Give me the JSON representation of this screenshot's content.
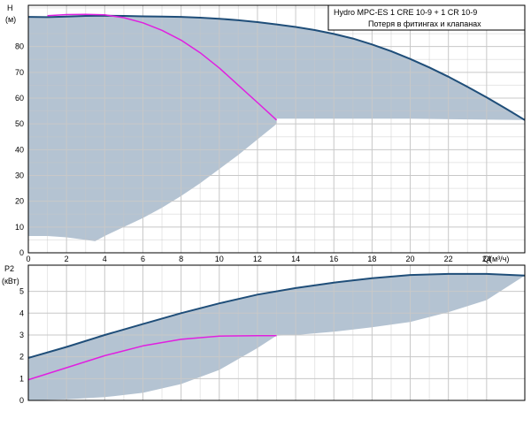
{
  "chart_data": [
    {
      "type": "line",
      "ylabel_line1": "H",
      "ylabel_line2": "(м)",
      "xlabel": "Q(м³/ч)",
      "xlim": [
        0,
        26
      ],
      "ylim": [
        0,
        96
      ],
      "x_tick_labels": [
        "0",
        "2",
        "4",
        "6",
        "8",
        "10",
        "12",
        "14",
        "16",
        "18",
        "20",
        "22",
        "24"
      ],
      "x_tick_values": [
        0,
        2,
        4,
        6,
        8,
        10,
        12,
        14,
        16,
        18,
        20,
        22,
        24
      ],
      "y_tick_values": [
        0,
        10,
        20,
        30,
        40,
        50,
        60,
        70,
        80
      ],
      "legend": {
        "line1": "Hydro MPC-ES 1 CRE 10-9  +  1 CR 10-9",
        "line2": "Потеря в фитингах и клапанах"
      },
      "colors": {
        "system_curve": "#1f4e79",
        "single_pump_curve": "#e020e0",
        "operating_area": "#b4c3d2",
        "grid": "#c8c8c8"
      },
      "series": [
        {
          "x": [
            0,
            1,
            2,
            3,
            4,
            5,
            6,
            7,
            8,
            9,
            10,
            11,
            12,
            13,
            14,
            15,
            16,
            17,
            18,
            19,
            20,
            21,
            22,
            23,
            24,
            25,
            26
          ],
          "values": [
            91.5,
            91.4,
            91.6,
            91.9,
            92.0,
            91.9,
            91.7,
            91.6,
            91.5,
            91.2,
            90.8,
            90.2,
            89.5,
            88.6,
            87.6,
            86.4,
            84.9,
            83.1,
            80.8,
            78.2,
            75.2,
            71.9,
            68.3,
            64.4,
            60.3,
            56.0,
            51.5
          ]
        },
        {
          "x": [
            1,
            2,
            3,
            4,
            5,
            6,
            7,
            8,
            9,
            10,
            11,
            12,
            13
          ],
          "values": [
            92.0,
            92.4,
            92.5,
            92.3,
            91.2,
            89.2,
            86.3,
            82.5,
            77.6,
            71.7,
            65.0,
            58.3,
            51.5
          ]
        }
      ],
      "area_upper": {
        "x": [
          0,
          1,
          2,
          3,
          4,
          5,
          6,
          7,
          8,
          9,
          10,
          11,
          12,
          13,
          14,
          15,
          16,
          17,
          18,
          19,
          20,
          21,
          22,
          23,
          24,
          25,
          26
        ],
        "values": [
          91.5,
          91.4,
          91.6,
          91.9,
          92.0,
          91.9,
          91.7,
          91.6,
          91.5,
          91.2,
          90.8,
          90.2,
          89.5,
          88.6,
          87.6,
          86.4,
          84.9,
          83.1,
          80.8,
          78.2,
          75.2,
          71.9,
          68.3,
          64.4,
          60.3,
          56.0,
          51.5
        ]
      },
      "area_lower": {
        "x": [
          26,
          20,
          14,
          13,
          13,
          12,
          11,
          10,
          9,
          8,
          7,
          6,
          5,
          4,
          3.5,
          3,
          2,
          1,
          0
        ],
        "values": [
          51.5,
          52.0,
          52.0,
          52.0,
          50.0,
          44.0,
          38.0,
          32.5,
          27.0,
          22.0,
          17.5,
          13.5,
          10.0,
          6.5,
          4.5,
          5.0,
          6.0,
          6.5,
          6.5
        ]
      }
    },
    {
      "type": "line",
      "ylabel_line1": "P2",
      "ylabel_line2": "(кВт)",
      "xlim": [
        0,
        26
      ],
      "ylim": [
        0,
        6.2
      ],
      "y_tick_values": [
        0,
        1,
        2,
        3,
        4,
        5
      ],
      "series": [
        {
          "x": [
            0,
            2,
            4,
            6,
            8,
            10,
            12,
            14,
            16,
            18,
            20,
            22,
            24,
            26
          ],
          "values": [
            1.95,
            2.45,
            3.0,
            3.5,
            4.0,
            4.45,
            4.85,
            5.15,
            5.4,
            5.6,
            5.75,
            5.8,
            5.8,
            5.72
          ]
        },
        {
          "x": [
            0,
            2,
            4,
            6,
            8,
            10,
            12,
            13
          ],
          "values": [
            0.95,
            1.5,
            2.05,
            2.5,
            2.8,
            2.95,
            2.97,
            2.97
          ]
        }
      ],
      "area_upper": {
        "x": [
          0,
          2,
          4,
          6,
          8,
          10,
          12,
          14,
          16,
          18,
          20,
          22,
          24,
          26
        ],
        "values": [
          1.95,
          2.45,
          3.0,
          3.5,
          4.0,
          4.45,
          4.85,
          5.15,
          5.4,
          5.6,
          5.75,
          5.8,
          5.8,
          5.72
        ]
      },
      "area_lower": {
        "x": [
          26,
          24,
          22,
          20,
          18,
          16,
          14,
          13,
          12,
          10,
          8,
          6,
          4,
          2,
          0
        ],
        "values": [
          5.72,
          4.6,
          4.05,
          3.6,
          3.35,
          3.15,
          3.0,
          2.97,
          2.4,
          1.4,
          0.75,
          0.35,
          0.15,
          0.05,
          0.0
        ]
      }
    }
  ]
}
